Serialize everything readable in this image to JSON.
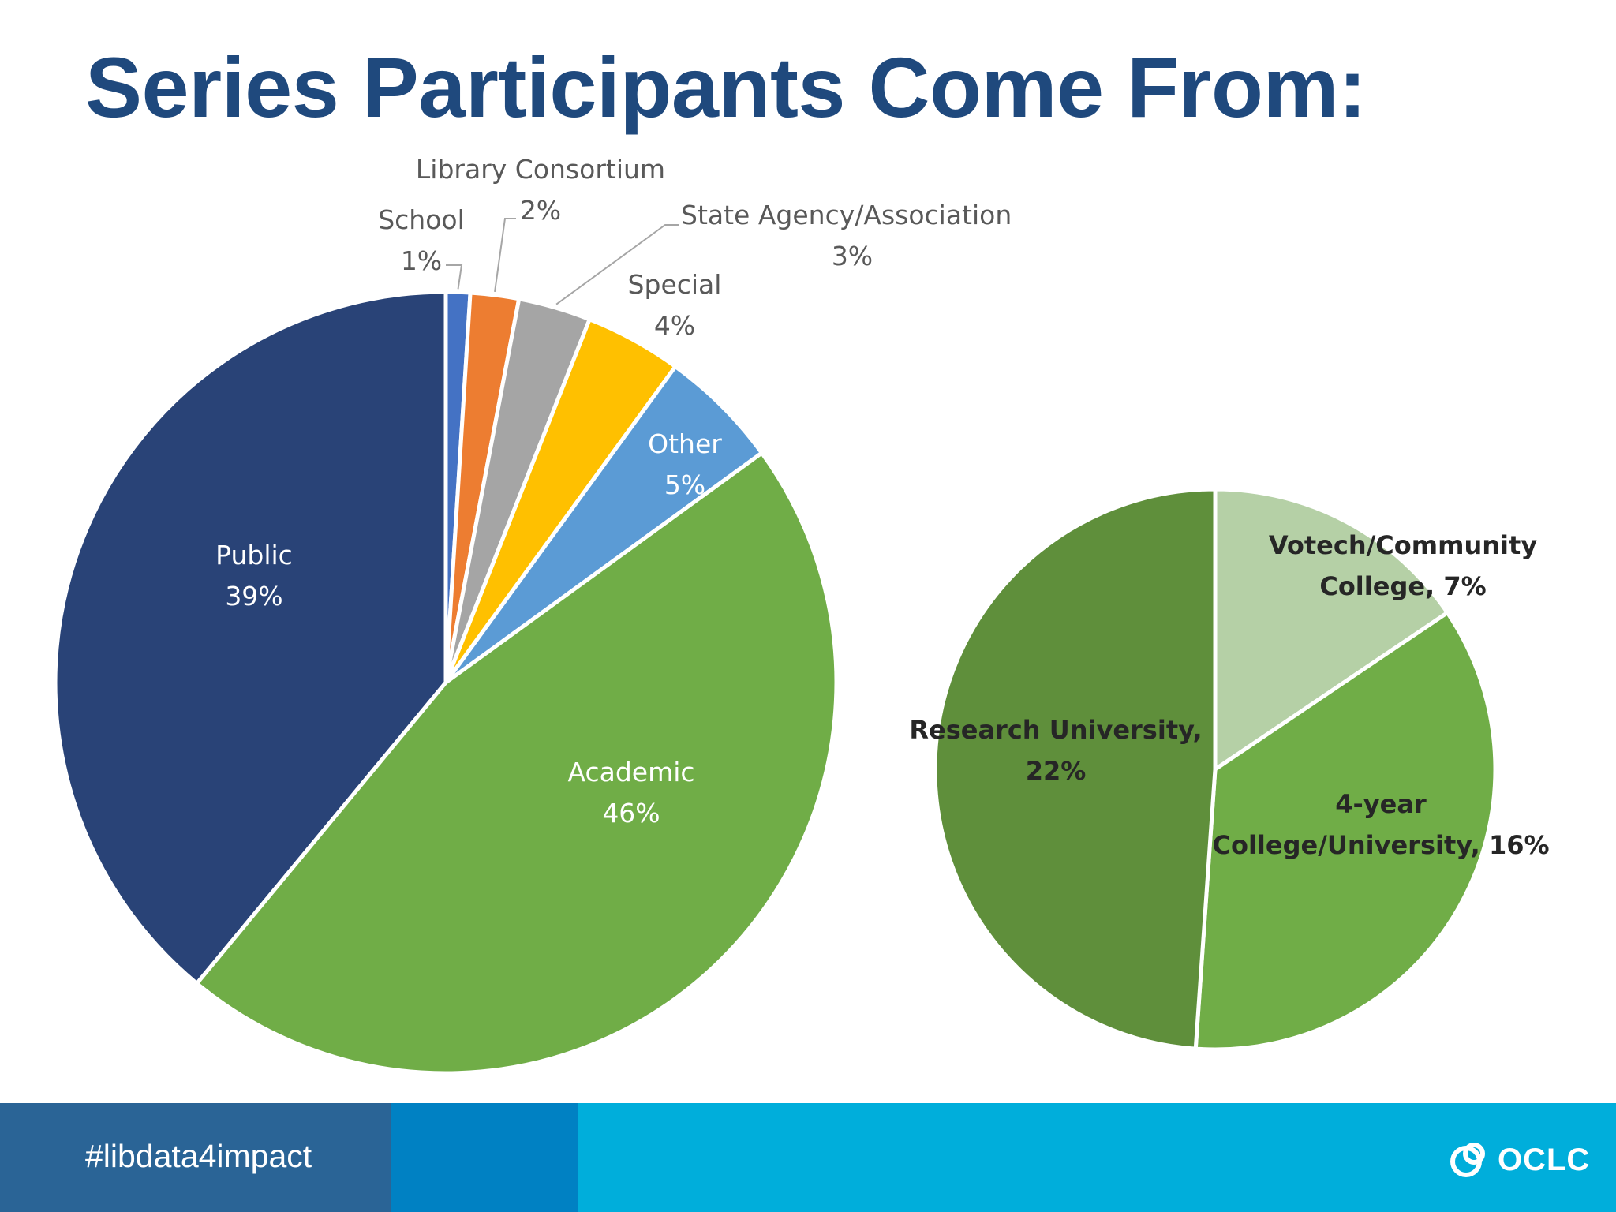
{
  "title": "Series Participants Come From:",
  "footer": {
    "hashtag": "#libdata4impact",
    "logo_text": "OCLC"
  },
  "colors": {
    "title": "#1f497d",
    "footer_left": "#2a6496",
    "footer_mid": "#0081c3",
    "footer_right": "#00aedb"
  },
  "chart_data": [
    {
      "type": "pie",
      "slices": [
        {
          "label": "Public",
          "value": 39,
          "value_text": "39%",
          "color": "#294377"
        },
        {
          "label": "School",
          "value": 1,
          "value_text": "1%",
          "color": "#4472c4"
        },
        {
          "label": "Library Consortium",
          "value": 2,
          "value_text": "2%",
          "color": "#ed7d31"
        },
        {
          "label": "State Agency/Association",
          "value": 3,
          "value_text": "3%",
          "color": "#a5a5a5"
        },
        {
          "label": "Special",
          "value": 4,
          "value_text": "4%",
          "color": "#ffc000"
        },
        {
          "label": "Other",
          "value": 5,
          "value_text": "5%",
          "color": "#5b9bd5"
        },
        {
          "label": "Academic",
          "value": 46,
          "value_text": "46%",
          "color": "#70ad47"
        }
      ]
    },
    {
      "type": "pie",
      "slices": [
        {
          "label": "Votech/Community College",
          "value": 7,
          "value_text": "7%",
          "color": "#b5d0a6"
        },
        {
          "label": "4-year College/University",
          "value": 16,
          "value_text": "16%",
          "color": "#70ad47"
        },
        {
          "label": "Research University",
          "value": 22,
          "value_text": "22%",
          "color": "#5f8f3b"
        }
      ]
    }
  ]
}
